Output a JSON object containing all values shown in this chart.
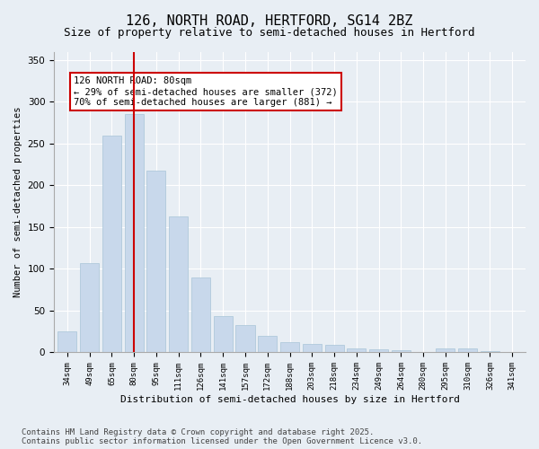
{
  "title1": "126, NORTH ROAD, HERTFORD, SG14 2BZ",
  "title2": "Size of property relative to semi-detached houses in Hertford",
  "xlabel": "Distribution of semi-detached houses by size in Hertford",
  "ylabel": "Number of semi-detached properties",
  "categories": [
    "34sqm",
    "49sqm",
    "65sqm",
    "80sqm",
    "95sqm",
    "111sqm",
    "126sqm",
    "141sqm",
    "157sqm",
    "172sqm",
    "188sqm",
    "203sqm",
    "218sqm",
    "234sqm",
    "249sqm",
    "264sqm",
    "280sqm",
    "295sqm",
    "310sqm",
    "326sqm",
    "341sqm"
  ],
  "values": [
    25,
    107,
    260,
    285,
    218,
    163,
    90,
    43,
    33,
    20,
    12,
    10,
    9,
    5,
    4,
    3,
    1,
    5,
    5,
    2,
    1
  ],
  "bar_color": "#c8d8eb",
  "bar_edge_color": "#a8c4d8",
  "vline_x": 3,
  "vline_color": "#cc0000",
  "annotation_text": "126 NORTH ROAD: 80sqm\n← 29% of semi-detached houses are smaller (372)\n70% of semi-detached houses are larger (881) →",
  "annotation_box_color": "#cc0000",
  "background_color": "#e8eef4",
  "plot_bg_color": "#e8eef4",
  "ylim": [
    0,
    360
  ],
  "yticks": [
    0,
    50,
    100,
    150,
    200,
    250,
    300,
    350
  ],
  "footer": "Contains HM Land Registry data © Crown copyright and database right 2025.\nContains public sector information licensed under the Open Government Licence v3.0.",
  "title1_fontsize": 11,
  "title2_fontsize": 9,
  "annotation_fontsize": 7.5,
  "footer_fontsize": 6.5
}
